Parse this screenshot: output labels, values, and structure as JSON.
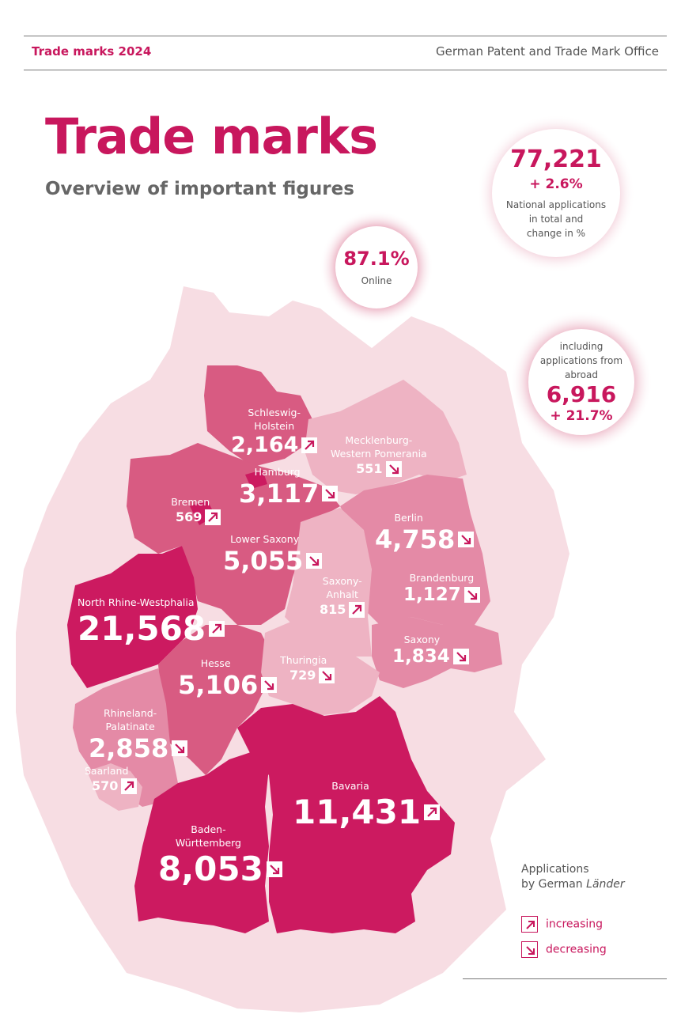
{
  "header": {
    "left": "Trade marks 2024",
    "right": "German Patent and Trade Mark Office"
  },
  "title": "Trade marks",
  "subtitle": "Overview of important figures",
  "highlights": {
    "national": {
      "value": "77,221",
      "change": "+ 2.6%",
      "label1": "National applications",
      "label2": "in total and",
      "label3": "change in %"
    },
    "online": {
      "value": "87.1%",
      "label": "Online"
    },
    "abroad": {
      "label1": "including",
      "label2": "applications from",
      "label3": "abroad",
      "value": "6,916",
      "change": "+ 21.7%"
    }
  },
  "regions": [
    {
      "name": "Schleswig-Holstein",
      "line1": "Schleswig-",
      "line2": "Holstein",
      "value": "2,164",
      "trend": "increasing"
    },
    {
      "name": "Mecklenburg-Western Pomerania",
      "line1": "Mecklenburg-",
      "line2": "Western Pomerania",
      "value": "551",
      "trend": "decreasing"
    },
    {
      "name": "Hamburg",
      "line1": "Hamburg",
      "value": "3,117",
      "trend": "decreasing"
    },
    {
      "name": "Bremen",
      "line1": "Bremen",
      "value": "569",
      "trend": "increasing"
    },
    {
      "name": "Berlin",
      "line1": "Berlin",
      "value": "4,758",
      "trend": "decreasing"
    },
    {
      "name": "Lower Saxony",
      "line1": "Lower Saxony",
      "value": "5,055",
      "trend": "decreasing"
    },
    {
      "name": "Brandenburg",
      "line1": "Brandenburg",
      "value": "1,127",
      "trend": "decreasing"
    },
    {
      "name": "Saxony-Anhalt",
      "line1": "Saxony-",
      "line2": "Anhalt",
      "value": "815",
      "trend": "increasing"
    },
    {
      "name": "North Rhine-Westphalia",
      "line1": "North Rhine-Westphalia",
      "value": "21,568",
      "trend": "increasing"
    },
    {
      "name": "Saxony",
      "line1": "Saxony",
      "value": "1,834",
      "trend": "decreasing"
    },
    {
      "name": "Hesse",
      "line1": "Hesse",
      "value": "5,106",
      "trend": "decreasing"
    },
    {
      "name": "Thuringia",
      "line1": "Thuringia",
      "value": "729",
      "trend": "decreasing"
    },
    {
      "name": "Rhineland-Palatinate",
      "line1": "Rhineland-",
      "line2": "Palatinate",
      "value": "2,858",
      "trend": "decreasing"
    },
    {
      "name": "Saarland",
      "line1": "Saarland",
      "value": "570",
      "trend": "increasing"
    },
    {
      "name": "Bavaria",
      "line1": "Bavaria",
      "value": "11,431",
      "trend": "increasing"
    },
    {
      "name": "Baden-Württemberg",
      "line1": "Baden-",
      "line2": "Württemberg",
      "value": "8,053",
      "trend": "decreasing"
    }
  ],
  "legend": {
    "title1": "Applications",
    "title2": "by German ",
    "title2_italic": "Länder",
    "increasing": "increasing",
    "decreasing": "decreasing"
  },
  "colors": {
    "accent": "#c8175d",
    "shade_light": "#eeb3c3",
    "shade_mid": "#e48aa6",
    "shade_dark": "#d85b82",
    "shade_darkest": "#cc1a60",
    "background_shape": "#f7dde3"
  }
}
